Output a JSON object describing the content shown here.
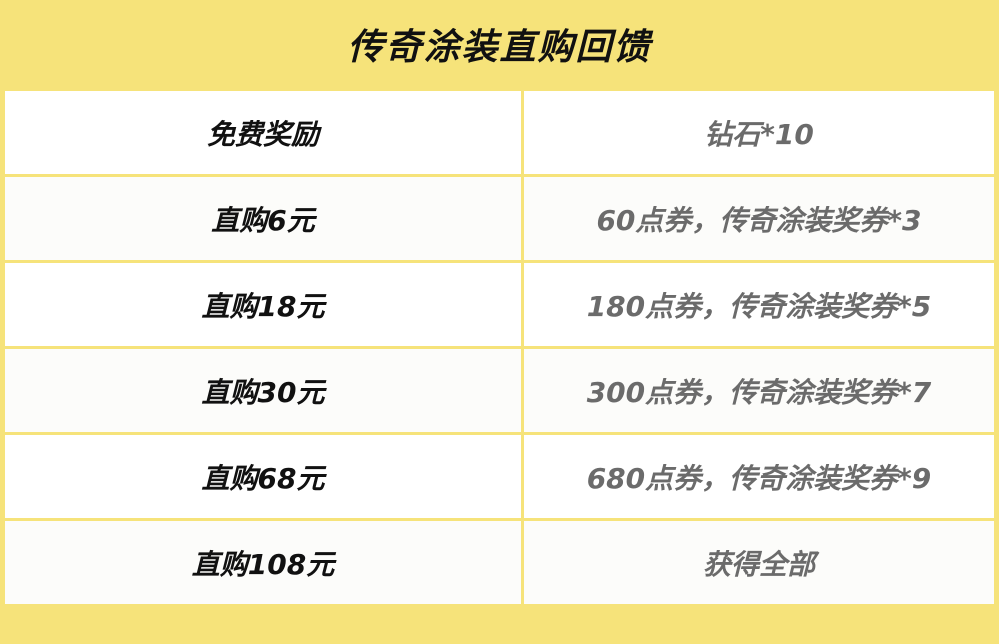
{
  "title": "传奇涂装直购回馈",
  "colors": {
    "header": "#f6e37a",
    "label": "#111111",
    "reward": "#6b6b6b"
  },
  "rows": [
    {
      "tier": "免费奖励",
      "reward": "钻石*10"
    },
    {
      "tier": "直购6元",
      "reward": "60点券，传奇涂装奖券*3"
    },
    {
      "tier": "直购18元",
      "reward": "180点券，传奇涂装奖券*5"
    },
    {
      "tier": "直购30元",
      "reward": "300点券，传奇涂装奖券*7"
    },
    {
      "tier": "直购68元",
      "reward": "680点券，传奇涂装奖券*9"
    },
    {
      "tier": "直购108元",
      "reward": "获得全部"
    }
  ]
}
